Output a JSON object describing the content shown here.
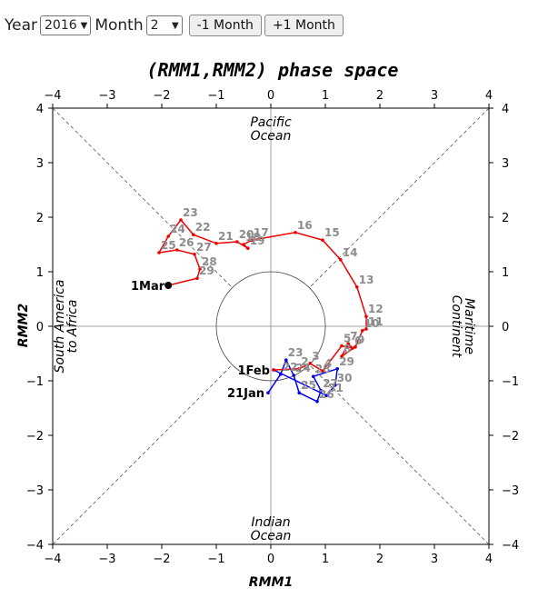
{
  "controls": {
    "year_label": "Year",
    "year_value": "2016",
    "month_label": "Month",
    "month_value": "2",
    "prev_button": "-1 Month",
    "next_button": "+1 Month"
  },
  "chart_data": {
    "type": "scatter",
    "title": "(RMM1,RMM2) phase space",
    "xlabel": "RMM1",
    "ylabel": "RMM2",
    "xlim": [
      -4,
      4
    ],
    "ylim": [
      -4,
      4
    ],
    "ticks": [
      -4,
      -3,
      -2,
      -1,
      0,
      1,
      2,
      3,
      4
    ],
    "regions": {
      "top": [
        "Pacific",
        "Ocean"
      ],
      "bottom": [
        "Indian",
        "Ocean"
      ],
      "left": [
        "South America",
        "to Africa"
      ],
      "right": [
        "Maritime",
        "Continent"
      ]
    },
    "series": [
      {
        "color": "#0000ee",
        "points": [
          {
            "label": "21Jan",
            "x": -0.05,
            "y": -1.22
          },
          {
            "label": "22",
            "x": 0.18,
            "y": -0.88
          },
          {
            "label": "23",
            "x": 0.28,
            "y": -0.62
          },
          {
            "label": "24",
            "x": 0.42,
            "y": -0.9
          },
          {
            "label": "25",
            "x": 0.52,
            "y": -1.22
          },
          {
            "label": "26",
            "x": 0.85,
            "y": -1.38
          },
          {
            "label": "27",
            "x": 0.92,
            "y": -1.18
          },
          {
            "label": "28",
            "x": 0.78,
            "y": -0.92
          },
          {
            "label": "29",
            "x": 1.22,
            "y": -0.78
          },
          {
            "label": "30",
            "x": 1.18,
            "y": -1.08
          },
          {
            "label": "31",
            "x": 1.02,
            "y": -1.27
          },
          {
            "label": "1Feb",
            "x": 0.05,
            "y": -0.8
          }
        ]
      },
      {
        "color": "#ee0000",
        "points": [
          {
            "label": "1Feb",
            "x": 0.05,
            "y": -0.8
          },
          {
            "label": "2",
            "x": 0.52,
            "y": -0.78
          },
          {
            "label": "3",
            "x": 0.72,
            "y": -0.68
          },
          {
            "label": "4",
            "x": 0.95,
            "y": -0.82
          },
          {
            "label": "5",
            "x": 1.3,
            "y": -0.36
          },
          {
            "label": "6",
            "x": 1.5,
            "y": -0.4
          },
          {
            "label": "7",
            "x": 1.42,
            "y": -0.32
          },
          {
            "label": "8",
            "x": 1.3,
            "y": -0.55
          },
          {
            "label": "9",
            "x": 1.55,
            "y": -0.38
          },
          {
            "label": "10",
            "x": 1.68,
            "y": -0.08
          },
          {
            "label": "11",
            "x": 1.75,
            "y": -0.05
          },
          {
            "label": "12",
            "x": 1.75,
            "y": 0.18
          },
          {
            "label": "13",
            "x": 1.58,
            "y": 0.72
          },
          {
            "label": "14",
            "x": 1.28,
            "y": 1.22
          },
          {
            "label": "15",
            "x": 0.95,
            "y": 1.58
          },
          {
            "label": "16",
            "x": 0.45,
            "y": 1.72
          },
          {
            "label": "17",
            "x": -0.35,
            "y": 1.58
          },
          {
            "label": "18",
            "x": -0.5,
            "y": 1.5
          },
          {
            "label": "19",
            "x": -0.42,
            "y": 1.43
          },
          {
            "label": "20",
            "x": -0.62,
            "y": 1.55
          },
          {
            "label": "21",
            "x": -1.0,
            "y": 1.52
          },
          {
            "label": "22",
            "x": -1.42,
            "y": 1.68
          },
          {
            "label": "23",
            "x": -1.65,
            "y": 1.95
          },
          {
            "label": "24",
            "x": -1.88,
            "y": 1.65
          },
          {
            "label": "25",
            "x": -2.05,
            "y": 1.35
          },
          {
            "label": "26",
            "x": -1.72,
            "y": 1.4
          },
          {
            "label": "27",
            "x": -1.4,
            "y": 1.32
          },
          {
            "label": "28",
            "x": -1.3,
            "y": 1.05
          },
          {
            "label": "29",
            "x": -1.35,
            "y": 0.88
          },
          {
            "label": "1Mar",
            "x": -1.88,
            "y": 0.75
          }
        ]
      }
    ]
  }
}
